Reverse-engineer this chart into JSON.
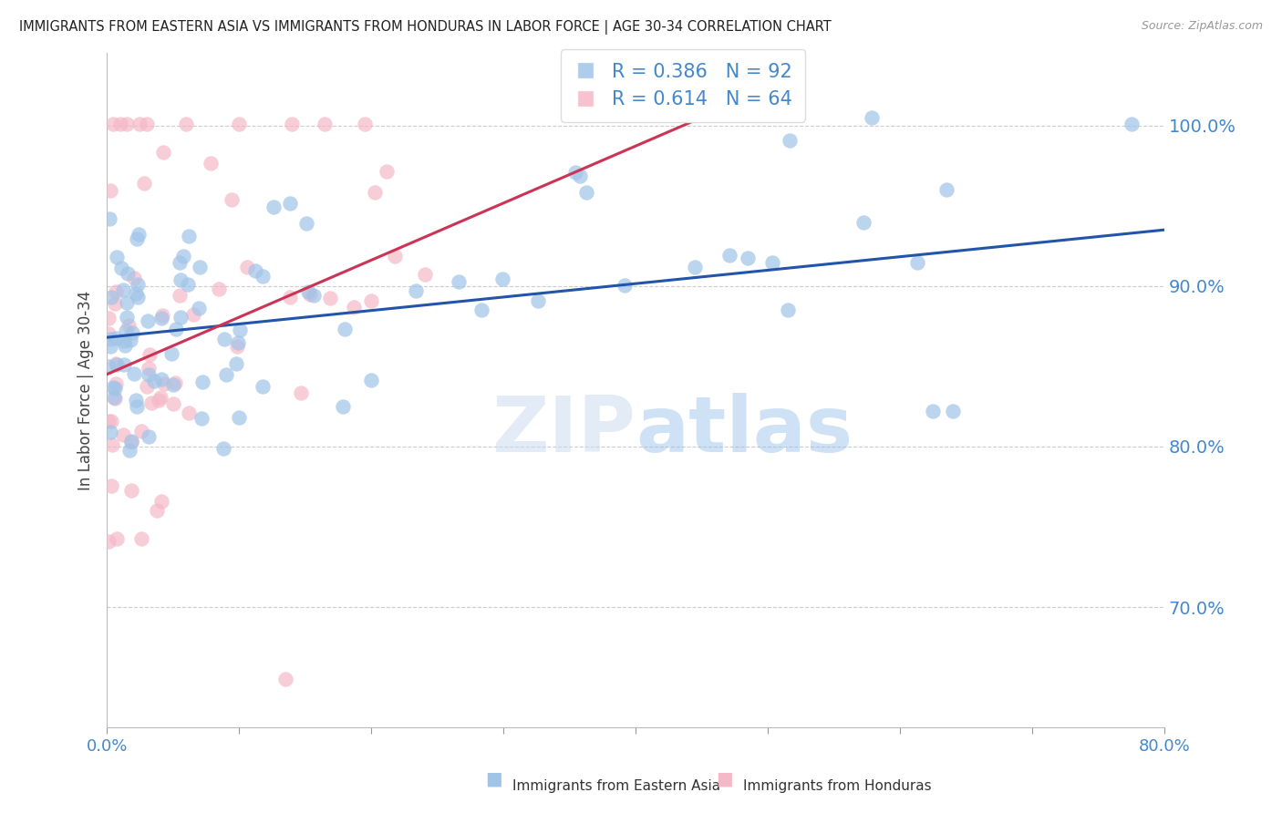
{
  "title": "IMMIGRANTS FROM EASTERN ASIA VS IMMIGRANTS FROM HONDURAS IN LABOR FORCE | AGE 30-34 CORRELATION CHART",
  "source": "Source: ZipAtlas.com",
  "ylabel": "In Labor Force | Age 30-34",
  "legend_labels": [
    "Immigrants from Eastern Asia",
    "Immigrants from Honduras"
  ],
  "blue_R": 0.386,
  "blue_N": 92,
  "pink_R": 0.614,
  "pink_N": 64,
  "blue_color": "#a0c4e8",
  "pink_color": "#f5b8c8",
  "blue_line_color": "#2255aa",
  "pink_line_color": "#cc3355",
  "axis_color": "#4488cc",
  "xlim": [
    0.0,
    0.8
  ],
  "ylim": [
    0.625,
    1.045
  ],
  "yticks": [
    0.7,
    0.8,
    0.9,
    1.0
  ],
  "blue_trend_x": [
    0.0,
    0.8
  ],
  "blue_trend_y": [
    0.868,
    0.935
  ],
  "pink_trend_x": [
    0.0,
    0.45
  ],
  "pink_trend_y": [
    0.845,
    1.005
  ]
}
